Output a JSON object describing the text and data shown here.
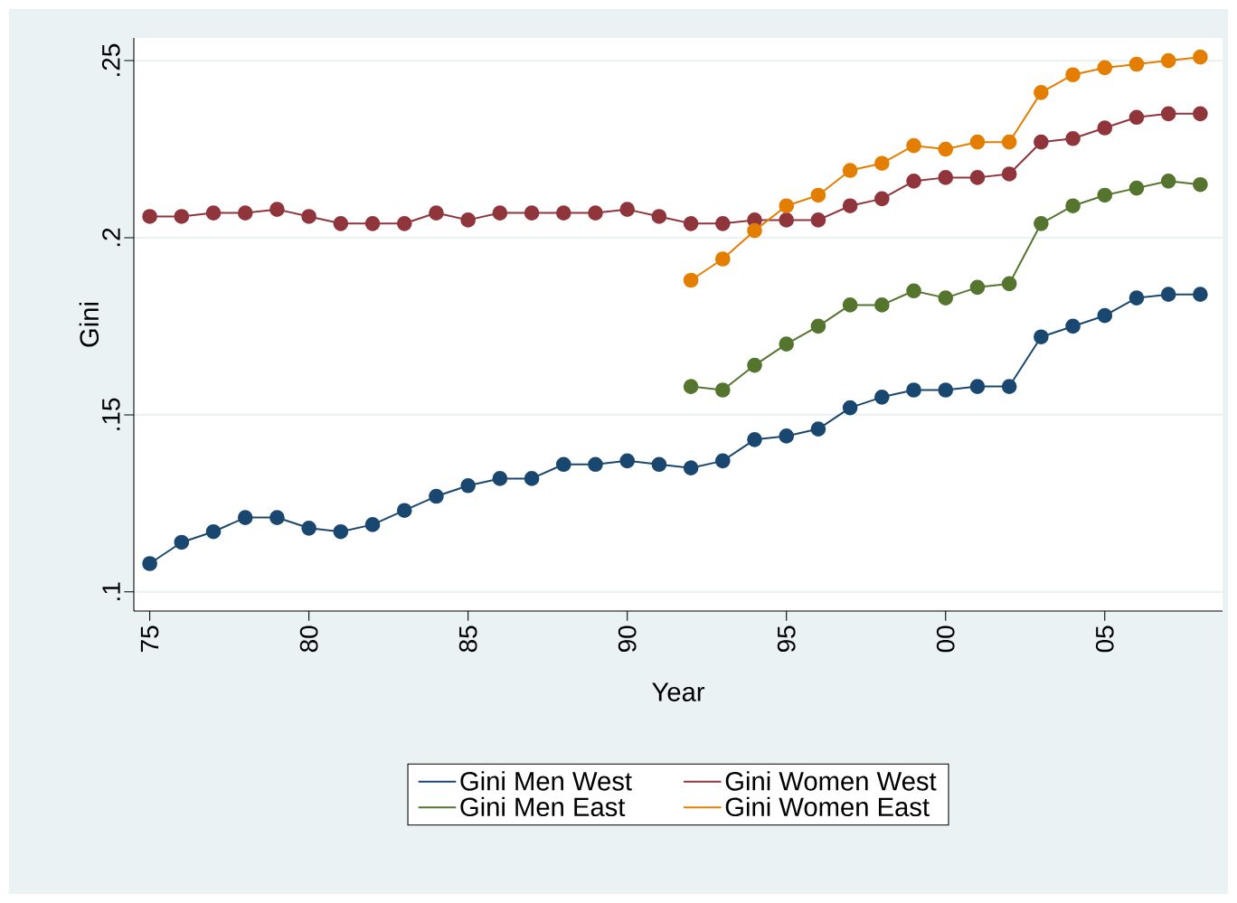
{
  "chart_data": {
    "type": "line",
    "xlabel": "Year",
    "ylabel": "Gini",
    "xlim": [
      1974.5,
      2008.7
    ],
    "ylim": [
      0.0946,
      0.2564
    ],
    "xticks": [
      {
        "value": 1975,
        "label": "75"
      },
      {
        "value": 1980,
        "label": "80"
      },
      {
        "value": 1985,
        "label": "85"
      },
      {
        "value": 1990,
        "label": "90"
      },
      {
        "value": 1995,
        "label": "95"
      },
      {
        "value": 2000,
        "label": "00"
      },
      {
        "value": 2005,
        "label": "05"
      }
    ],
    "yticks": [
      {
        "value": 0.1,
        "label": ".1"
      },
      {
        "value": 0.15,
        "label": ".15"
      },
      {
        "value": 0.2,
        "label": ".2"
      },
      {
        "value": 0.25,
        "label": ".25"
      }
    ],
    "grid": "y",
    "legend": "bottom",
    "marker": "circle",
    "line_style": "solid",
    "series": [
      {
        "name": "Gini Men West",
        "color": "#1a476f",
        "x": [
          1975,
          1976,
          1977,
          1978,
          1979,
          1980,
          1981,
          1982,
          1983,
          1984,
          1985,
          1986,
          1987,
          1988,
          1989,
          1990,
          1991,
          1992,
          1993,
          1994,
          1995,
          1996,
          1997,
          1998,
          1999,
          2000,
          2001,
          2002,
          2003,
          2004,
          2005,
          2006,
          2007,
          2008
        ],
        "values": [
          0.108,
          0.114,
          0.117,
          0.121,
          0.121,
          0.118,
          0.117,
          0.119,
          0.123,
          0.127,
          0.13,
          0.132,
          0.132,
          0.136,
          0.136,
          0.137,
          0.136,
          0.135,
          0.137,
          0.143,
          0.144,
          0.146,
          0.152,
          0.155,
          0.157,
          0.157,
          0.158,
          0.158,
          0.172,
          0.175,
          0.178,
          0.183,
          0.184,
          0.184
        ]
      },
      {
        "name": "Gini Women West",
        "color": "#90353b",
        "x": [
          1975,
          1976,
          1977,
          1978,
          1979,
          1980,
          1981,
          1982,
          1983,
          1984,
          1985,
          1986,
          1987,
          1988,
          1989,
          1990,
          1991,
          1992,
          1993,
          1994,
          1995,
          1996,
          1997,
          1998,
          1999,
          2000,
          2001,
          2002,
          2003,
          2004,
          2005,
          2006,
          2007,
          2008
        ],
        "values": [
          0.206,
          0.206,
          0.207,
          0.207,
          0.208,
          0.206,
          0.204,
          0.204,
          0.204,
          0.207,
          0.205,
          0.207,
          0.207,
          0.207,
          0.207,
          0.208,
          0.206,
          0.204,
          0.204,
          0.205,
          0.205,
          0.205,
          0.209,
          0.211,
          0.216,
          0.217,
          0.217,
          0.218,
          0.227,
          0.228,
          0.231,
          0.234,
          0.235,
          0.235
        ]
      },
      {
        "name": "Gini Men East",
        "color": "#55752f",
        "x": [
          1992,
          1993,
          1994,
          1995,
          1996,
          1997,
          1998,
          1999,
          2000,
          2001,
          2002,
          2003,
          2004,
          2005,
          2006,
          2007,
          2008
        ],
        "values": [
          0.158,
          0.157,
          0.164,
          0.17,
          0.175,
          0.181,
          0.181,
          0.185,
          0.183,
          0.186,
          0.187,
          0.204,
          0.209,
          0.212,
          0.214,
          0.216,
          0.215
        ]
      },
      {
        "name": "Gini Women East",
        "color": "#e37e00",
        "x": [
          1992,
          1993,
          1994,
          1995,
          1996,
          1997,
          1998,
          1999,
          2000,
          2001,
          2002,
          2003,
          2004,
          2005,
          2006,
          2007,
          2008
        ],
        "values": [
          0.188,
          0.194,
          0.202,
          0.209,
          0.212,
          0.219,
          0.221,
          0.226,
          0.225,
          0.227,
          0.227,
          0.241,
          0.246,
          0.248,
          0.249,
          0.25,
          0.251
        ]
      }
    ]
  }
}
